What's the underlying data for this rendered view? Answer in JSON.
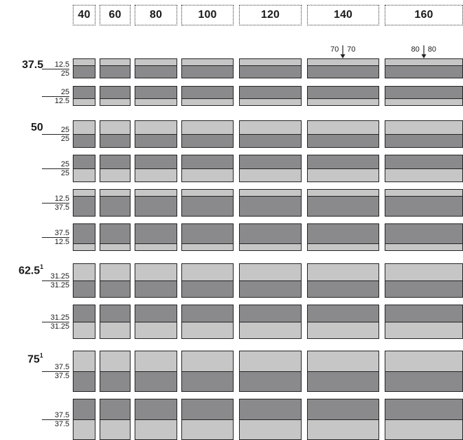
{
  "widths": [
    {
      "label": "40",
      "value": 40
    },
    {
      "label": "60",
      "value": 60
    },
    {
      "label": "80",
      "value": 80
    },
    {
      "label": "100",
      "value": 100
    },
    {
      "label": "120",
      "value": 120
    },
    {
      "label": "140",
      "value": 140
    },
    {
      "label": "160",
      "value": 160
    }
  ],
  "split_annotations": [
    {
      "column": "140",
      "left": "70",
      "right": "70"
    },
    {
      "column": "160",
      "left": "80",
      "right": "80"
    }
  ],
  "groups": [
    {
      "height": "37.5",
      "superscript": "",
      "rows": [
        {
          "top": "12.5",
          "bottom": "25",
          "top_tone": "light",
          "bottom_tone": "dark",
          "top_value": 12.5,
          "bottom_value": 25
        },
        {
          "top": "25",
          "bottom": "12.5",
          "top_tone": "dark",
          "bottom_tone": "light",
          "top_value": 25,
          "bottom_value": 12.5
        }
      ]
    },
    {
      "height": "50",
      "superscript": "",
      "rows": [
        {
          "top": "25",
          "bottom": "25",
          "top_tone": "light",
          "bottom_tone": "dark",
          "top_value": 25,
          "bottom_value": 25
        },
        {
          "top": "25",
          "bottom": "25",
          "top_tone": "dark",
          "bottom_tone": "light",
          "top_value": 25,
          "bottom_value": 25
        },
        {
          "top": "12.5",
          "bottom": "37.5",
          "top_tone": "light",
          "bottom_tone": "dark",
          "top_value": 12.5,
          "bottom_value": 37.5
        },
        {
          "top": "37.5",
          "bottom": "12.5",
          "top_tone": "dark",
          "bottom_tone": "light",
          "top_value": 37.5,
          "bottom_value": 12.5
        }
      ]
    },
    {
      "height": "62.5",
      "superscript": "1",
      "rows": [
        {
          "top": "31.25",
          "bottom": "31.25",
          "top_tone": "light",
          "bottom_tone": "dark",
          "top_value": 31.25,
          "bottom_value": 31.25
        },
        {
          "top": "31.25",
          "bottom": "31.25",
          "top_tone": "dark",
          "bottom_tone": "light",
          "top_value": 31.25,
          "bottom_value": 31.25
        }
      ]
    },
    {
      "height": "75",
      "superscript": "1",
      "rows": [
        {
          "top": "37.5",
          "bottom": "37.5",
          "top_tone": "light",
          "bottom_tone": "dark",
          "top_value": 37.5,
          "bottom_value": 37.5
        },
        {
          "top": "37.5",
          "bottom": "37.5",
          "top_tone": "dark",
          "bottom_tone": "light",
          "top_value": 37.5,
          "bottom_value": 37.5
        }
      ]
    }
  ],
  "colors": {
    "dark": "#8a8a8c",
    "light": "#c6c6c7",
    "line": "#222222"
  }
}
